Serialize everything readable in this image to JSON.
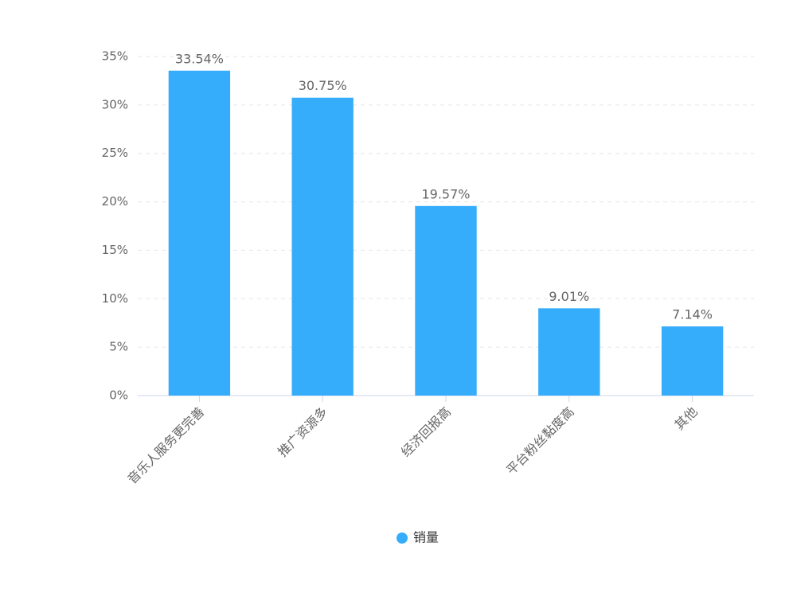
{
  "chart_data": {
    "type": "bar",
    "categories": [
      "音乐人服务更完善",
      "推广资源多",
      "经济回报高",
      "平台粉丝黏度高",
      "其他"
    ],
    "series": [
      {
        "name": "销量",
        "color": "#36adfb",
        "values": [
          33.54,
          30.75,
          19.57,
          9.01,
          7.14
        ],
        "value_labels": [
          "33.54%",
          "30.75%",
          "19.57%",
          "9.01%",
          "7.14%"
        ]
      }
    ],
    "ylim": [
      0,
      35
    ],
    "yticks": [
      {
        "value": 0,
        "label": "0%"
      },
      {
        "value": 5,
        "label": "5%"
      },
      {
        "value": 10,
        "label": "10%"
      },
      {
        "value": 15,
        "label": "15%"
      },
      {
        "value": 20,
        "label": "20%"
      },
      {
        "value": 25,
        "label": "25%"
      },
      {
        "value": 30,
        "label": "30%"
      },
      {
        "value": 35,
        "label": "35%"
      }
    ],
    "grid": true,
    "legend": "bottom"
  }
}
